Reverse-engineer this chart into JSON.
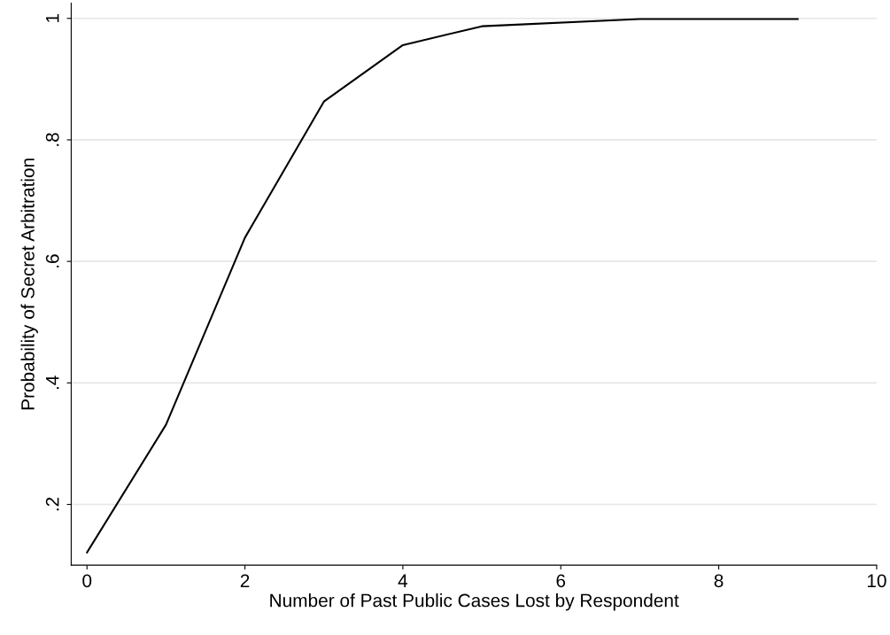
{
  "chart_data": {
    "type": "line",
    "xlabel": "Number of Past Public Cases Lost by Respondent",
    "ylabel": "Probability of Secret Arbitration",
    "x": [
      0,
      1,
      2,
      3,
      4,
      5,
      7,
      9
    ],
    "series": [
      {
        "color": "#000000",
        "values": [
          0.121,
          0.331,
          0.639,
          0.863,
          0.956,
          0.987,
          0.999,
          0.999
        ]
      }
    ],
    "xlim": [
      -0.2,
      10
    ],
    "xticks": [
      0,
      2,
      4,
      6,
      8,
      10
    ],
    "ylim": [
      0.1,
      1.025
    ],
    "yticks": [
      {
        "value": 0.2,
        "label": ".2"
      },
      {
        "value": 0.4,
        "label": ".4"
      },
      {
        "value": 0.6,
        "label": ".6"
      },
      {
        "value": 0.8,
        "label": ".8"
      },
      1
    ],
    "grid": "y",
    "legend": false,
    "marker": "none",
    "line_style": "solid"
  }
}
